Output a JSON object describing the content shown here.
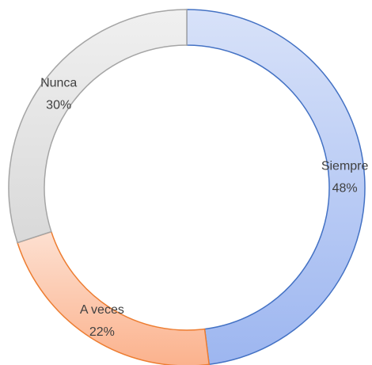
{
  "chart_data": {
    "type": "donut",
    "categories": [
      "Siempre",
      "A veces",
      "Nunca"
    ],
    "values": [
      48,
      22,
      30
    ],
    "value_labels": [
      "48%",
      "22%",
      "30%"
    ],
    "colors": [
      "#9db6f0",
      "#fbb28d",
      "#d9d9d9"
    ],
    "border_colors": [
      "#4472c4",
      "#ed7d31",
      "#a5a5a5"
    ]
  }
}
